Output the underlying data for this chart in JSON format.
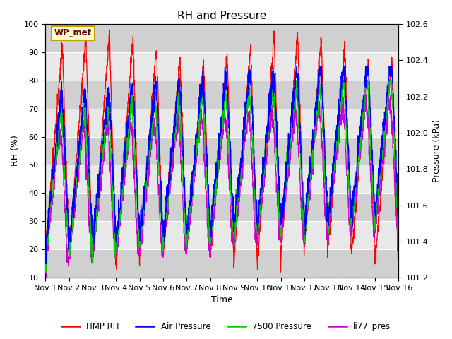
{
  "title": "RH and Pressure",
  "xlabel": "Time",
  "ylabel_left": "RH (%)",
  "ylabel_right": "Pressure (kPa)",
  "ylim_left": [
    10,
    100
  ],
  "ylim_right": [
    101.2,
    102.6
  ],
  "xtick_labels": [
    "Nov 1",
    "Nov 2",
    "Nov 3",
    "Nov 4",
    "Nov 5",
    "Nov 6",
    "Nov 7",
    "Nov 8",
    "Nov 9",
    "Nov 10",
    "Nov 11",
    "Nov 12",
    "Nov 13",
    "Nov 14",
    "Nov 15",
    "Nov 16"
  ],
  "yticks_left": [
    10,
    20,
    30,
    40,
    50,
    60,
    70,
    80,
    90,
    100
  ],
  "yticks_right": [
    101.2,
    101.4,
    101.6,
    101.8,
    102.0,
    102.2,
    102.4,
    102.6
  ],
  "colors": {
    "HMP_RH": "#ff0000",
    "Air_Pressure": "#0000ff",
    "Pressure_7500": "#00cc00",
    "li77_pres": "#cc00cc"
  },
  "legend_labels": [
    "HMP RH",
    "Air Pressure",
    "7500 Pressure",
    "li77_pres"
  ],
  "annotation_text": "WP_met",
  "annotation_bg": "#ffffcc",
  "annotation_border": "#cc9900",
  "background_color": "#ffffff",
  "plot_bg_light": "#e8e8e8",
  "plot_bg_dark": "#d0d0d0",
  "n_points": 2000
}
